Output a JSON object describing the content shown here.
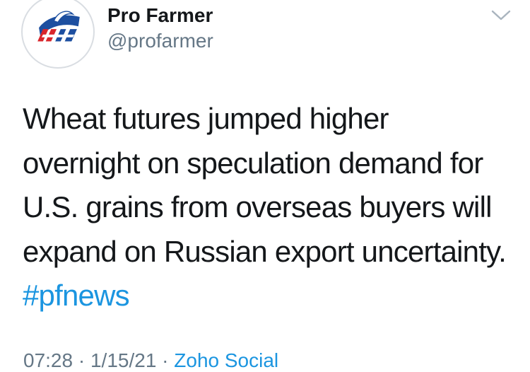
{
  "author": {
    "display_name": "Pro Farmer",
    "handle": "@profarmer"
  },
  "tweet": {
    "lines": [
      "Wheat futures jumped higher",
      "overnight on speculation demand for",
      "U.S. grains from overseas buyers will",
      "expand on Russian export uncertainty."
    ],
    "hashtag": "#pfnews"
  },
  "meta": {
    "time": "07:28",
    "separator": " · ",
    "date": "1/15/21",
    "source": "Zoho Social"
  },
  "colors": {
    "link": "#1b95e0",
    "secondary_text": "#657786",
    "logo_blue": "#1d4fa0",
    "logo_red": "#d9262b"
  },
  "icons": {
    "avatar": "pro-farmer-logo",
    "menu": "chevron-down-icon"
  }
}
